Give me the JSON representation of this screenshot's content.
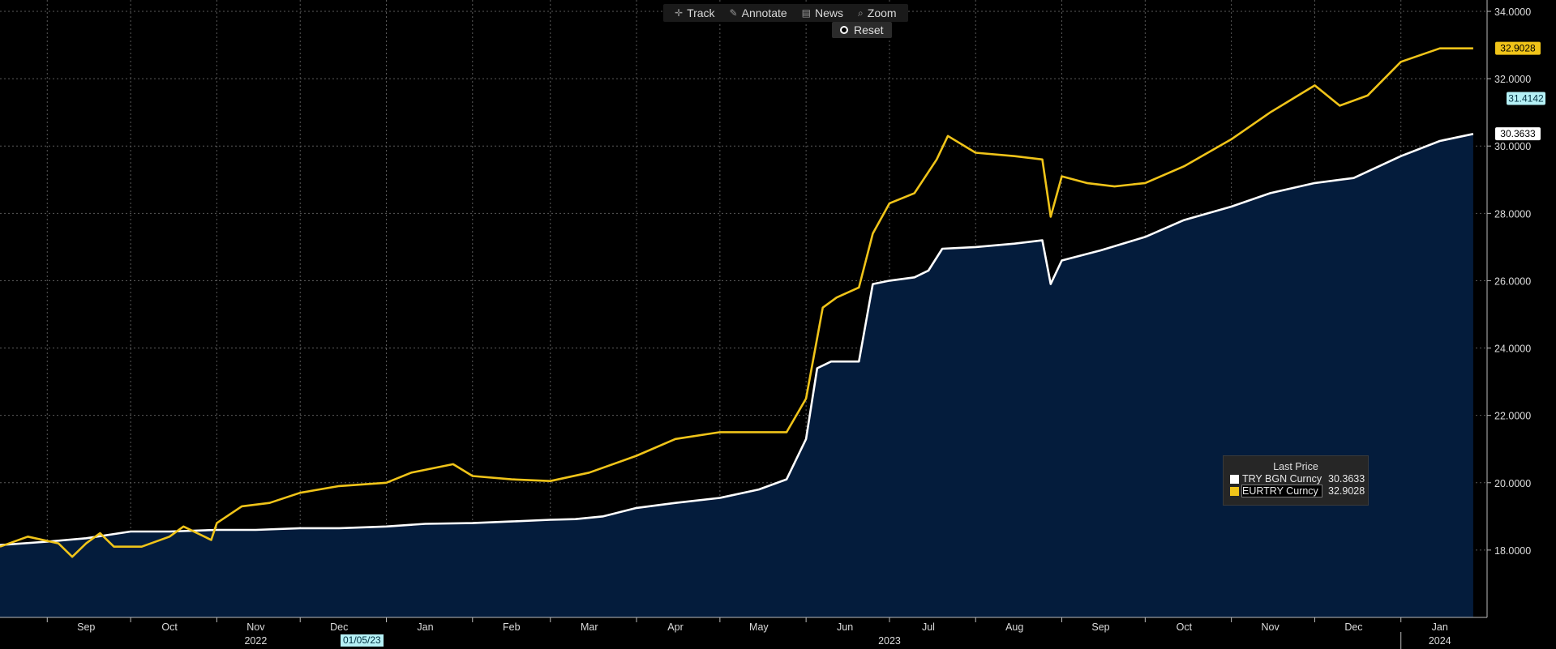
{
  "toolbar": {
    "track_label": "Track",
    "annotate_label": "Annotate",
    "news_label": "News",
    "zoom_label": "Zoom",
    "reset_label": "Reset"
  },
  "legend": {
    "title": "Last Price",
    "items": [
      {
        "name": "TRY BGN Curncy",
        "value": "30.3633",
        "color": "#ffffff"
      },
      {
        "name": "EURTRY Curncy",
        "value": "32.9028",
        "color": "#f0c419"
      }
    ]
  },
  "crosshair_date": "01/05/23",
  "price_tags": [
    {
      "value": 32.9028,
      "label": "32.9028",
      "bg": "#f0c419",
      "fg": "#000000"
    },
    {
      "value": 31.4142,
      "label": "31.4142",
      "bg": "#b5f0f5",
      "fg": "#003040"
    },
    {
      "value": 30.3633,
      "label": "30.3633",
      "bg": "#ffffff",
      "fg": "#000000"
    }
  ],
  "colors": {
    "background": "#000000",
    "area_fill": "#041c3c",
    "try_line": "#ffffff",
    "eurtry_line": "#f0c419",
    "grid": "#5a5a5a"
  },
  "chart_data": {
    "type": "line",
    "ylim": [
      16.0,
      34.0
    ],
    "y_ticks": [
      "18.0000",
      "20.0000",
      "22.0000",
      "24.0000",
      "26.0000",
      "28.0000",
      "30.0000",
      "32.0000",
      "34.0000"
    ],
    "xlim": [
      "2022-08-15",
      "2024-02-01"
    ],
    "x_months": [
      {
        "label": "Sep",
        "date": "2022-09-15"
      },
      {
        "label": "Oct",
        "date": "2022-10-15"
      },
      {
        "label": "Nov",
        "date": "2022-11-15"
      },
      {
        "label": "Dec",
        "date": "2022-12-15"
      },
      {
        "label": "Jan",
        "date": "2023-01-15"
      },
      {
        "label": "Feb",
        "date": "2023-02-15"
      },
      {
        "label": "Mar",
        "date": "2023-03-15"
      },
      {
        "label": "Apr",
        "date": "2023-04-15"
      },
      {
        "label": "May",
        "date": "2023-05-15"
      },
      {
        "label": "Jun",
        "date": "2023-06-15"
      },
      {
        "label": "Jul",
        "date": "2023-07-15"
      },
      {
        "label": "Aug",
        "date": "2023-08-15"
      },
      {
        "label": "Sep",
        "date": "2023-09-15"
      },
      {
        "label": "Oct",
        "date": "2023-10-15"
      },
      {
        "label": "Nov",
        "date": "2023-11-15"
      },
      {
        "label": "Dec",
        "date": "2023-12-15"
      },
      {
        "label": "Jan",
        "date": "2024-01-15"
      }
    ],
    "x_years": [
      {
        "label": "2022",
        "date": "2022-11-15"
      },
      {
        "label": "2023",
        "date": "2023-07-01"
      },
      {
        "label": "2024",
        "date": "2024-01-15"
      }
    ],
    "series": [
      {
        "name": "TRY BGN Curncy",
        "area": true,
        "points": [
          [
            "2022-08-15",
            18.15
          ],
          [
            "2022-09-01",
            18.25
          ],
          [
            "2022-09-15",
            18.35
          ],
          [
            "2022-10-01",
            18.55
          ],
          [
            "2022-10-15",
            18.55
          ],
          [
            "2022-11-01",
            18.6
          ],
          [
            "2022-11-15",
            18.6
          ],
          [
            "2022-12-01",
            18.65
          ],
          [
            "2022-12-15",
            18.65
          ],
          [
            "2023-01-01",
            18.7
          ],
          [
            "2023-01-15",
            18.78
          ],
          [
            "2023-02-01",
            18.8
          ],
          [
            "2023-02-15",
            18.85
          ],
          [
            "2023-03-01",
            18.9
          ],
          [
            "2023-03-10",
            18.92
          ],
          [
            "2023-03-20",
            19.0
          ],
          [
            "2023-04-01",
            19.25
          ],
          [
            "2023-04-15",
            19.4
          ],
          [
            "2023-05-01",
            19.55
          ],
          [
            "2023-05-15",
            19.8
          ],
          [
            "2023-05-25",
            20.1
          ],
          [
            "2023-06-01",
            21.3
          ],
          [
            "2023-06-05",
            23.4
          ],
          [
            "2023-06-10",
            23.6
          ],
          [
            "2023-06-20",
            23.6
          ],
          [
            "2023-06-25",
            25.9
          ],
          [
            "2023-07-01",
            26.0
          ],
          [
            "2023-07-10",
            26.1
          ],
          [
            "2023-07-15",
            26.3
          ],
          [
            "2023-07-20",
            26.95
          ],
          [
            "2023-08-01",
            27.0
          ],
          [
            "2023-08-15",
            27.1
          ],
          [
            "2023-08-25",
            27.2
          ],
          [
            "2023-08-28",
            25.9
          ],
          [
            "2023-09-01",
            26.6
          ],
          [
            "2023-09-15",
            26.9
          ],
          [
            "2023-10-01",
            27.3
          ],
          [
            "2023-10-15",
            27.8
          ],
          [
            "2023-11-01",
            28.2
          ],
          [
            "2023-11-15",
            28.6
          ],
          [
            "2023-12-01",
            28.9
          ],
          [
            "2023-12-15",
            29.05
          ],
          [
            "2024-01-01",
            29.7
          ],
          [
            "2024-01-15",
            30.15
          ],
          [
            "2024-01-27",
            30.36
          ]
        ]
      },
      {
        "name": "EURTRY Curncy",
        "area": false,
        "points": [
          [
            "2022-08-15",
            18.1
          ],
          [
            "2022-08-25",
            18.4
          ],
          [
            "2022-09-05",
            18.2
          ],
          [
            "2022-09-10",
            17.8
          ],
          [
            "2022-09-15",
            18.2
          ],
          [
            "2022-09-20",
            18.5
          ],
          [
            "2022-09-25",
            18.1
          ],
          [
            "2022-10-05",
            18.1
          ],
          [
            "2022-10-15",
            18.4
          ],
          [
            "2022-10-20",
            18.7
          ],
          [
            "2022-10-30",
            18.3
          ],
          [
            "2022-11-01",
            18.8
          ],
          [
            "2022-11-10",
            19.3
          ],
          [
            "2022-11-20",
            19.4
          ],
          [
            "2022-12-01",
            19.7
          ],
          [
            "2022-12-15",
            19.9
          ],
          [
            "2023-01-01",
            20.0
          ],
          [
            "2023-01-10",
            20.3
          ],
          [
            "2023-01-25",
            20.55
          ],
          [
            "2023-02-01",
            20.2
          ],
          [
            "2023-02-15",
            20.1
          ],
          [
            "2023-03-01",
            20.05
          ],
          [
            "2023-03-15",
            20.3
          ],
          [
            "2023-04-01",
            20.8
          ],
          [
            "2023-04-15",
            21.3
          ],
          [
            "2023-05-01",
            21.5
          ],
          [
            "2023-05-15",
            21.5
          ],
          [
            "2023-05-25",
            21.5
          ],
          [
            "2023-06-01",
            22.5
          ],
          [
            "2023-06-07",
            25.2
          ],
          [
            "2023-06-12",
            25.5
          ],
          [
            "2023-06-20",
            25.8
          ],
          [
            "2023-06-25",
            27.4
          ],
          [
            "2023-07-01",
            28.3
          ],
          [
            "2023-07-10",
            28.6
          ],
          [
            "2023-07-18",
            29.6
          ],
          [
            "2023-07-22",
            30.3
          ],
          [
            "2023-08-01",
            29.8
          ],
          [
            "2023-08-15",
            29.7
          ],
          [
            "2023-08-25",
            29.6
          ],
          [
            "2023-08-28",
            27.9
          ],
          [
            "2023-09-01",
            29.1
          ],
          [
            "2023-09-10",
            28.9
          ],
          [
            "2023-09-20",
            28.8
          ],
          [
            "2023-10-01",
            28.9
          ],
          [
            "2023-10-15",
            29.4
          ],
          [
            "2023-11-01",
            30.2
          ],
          [
            "2023-11-15",
            31.0
          ],
          [
            "2023-11-25",
            31.5
          ],
          [
            "2023-12-01",
            31.8
          ],
          [
            "2023-12-10",
            31.2
          ],
          [
            "2023-12-20",
            31.5
          ],
          [
            "2024-01-01",
            32.5
          ],
          [
            "2024-01-15",
            32.9
          ],
          [
            "2024-01-27",
            32.9
          ]
        ]
      }
    ]
  }
}
